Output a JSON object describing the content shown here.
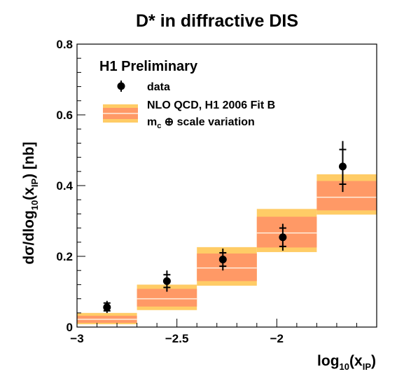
{
  "chart_data": {
    "type": "histogram-with-points",
    "title": "D* in diffractive DIS",
    "xlabel": {
      "main": "log",
      "sub1": "10",
      "mid": "(x",
      "sub2": "IP",
      "end": ")"
    },
    "ylabel": {
      "main": "dσ/dlog",
      "sub1": "10",
      "mid": "(x",
      "sub2": "IP",
      "end": ") [nb]"
    },
    "xlim": [
      -3.0,
      -1.5
    ],
    "ylim": [
      0.0,
      0.8
    ],
    "xticks": [
      -3.0,
      -2.5,
      -2.0
    ],
    "xtick_labels": [
      "−3",
      "−2.5",
      "−2"
    ],
    "yticks": [
      0.0,
      0.2,
      0.4,
      0.6,
      0.8
    ],
    "ytick_labels": [
      "0",
      "0.2",
      "0.4",
      "0.6",
      "0.8"
    ],
    "legend": {
      "header": "H1 Preliminary",
      "data_label": "data",
      "band_label": "NLO QCD, H1 2006 Fit B",
      "band_var": {
        "m": "m",
        "sub": "c",
        "rest": " ⊕ scale variation"
      }
    },
    "bins": [
      {
        "lo": -3.0,
        "hi": -2.7,
        "center": 0.022,
        "inner": [
          0.012,
          0.032
        ],
        "outer": [
          0.008,
          0.04
        ]
      },
      {
        "lo": -2.7,
        "hi": -2.4,
        "center": 0.08,
        "inner": [
          0.058,
          0.108
        ],
        "outer": [
          0.048,
          0.12
        ]
      },
      {
        "lo": -2.4,
        "hi": -2.1,
        "center": 0.167,
        "inner": [
          0.13,
          0.208
        ],
        "outer": [
          0.117,
          0.226
        ]
      },
      {
        "lo": -2.1,
        "hi": -1.8,
        "center": 0.266,
        "inner": [
          0.225,
          0.312
        ],
        "outer": [
          0.212,
          0.334
        ]
      },
      {
        "lo": -1.8,
        "hi": -1.5,
        "center": 0.367,
        "inner": [
          0.33,
          0.413
        ],
        "outer": [
          0.318,
          0.432
        ]
      }
    ],
    "points": [
      {
        "x": -2.85,
        "y": 0.056,
        "stat": [
          0.046,
          0.068
        ],
        "tot": [
          0.04,
          0.074
        ]
      },
      {
        "x": -2.55,
        "y": 0.13,
        "stat": [
          0.112,
          0.148
        ],
        "tot": [
          0.1,
          0.16
        ]
      },
      {
        "x": -2.27,
        "y": 0.191,
        "stat": [
          0.172,
          0.21
        ],
        "tot": [
          0.16,
          0.222
        ]
      },
      {
        "x": -1.97,
        "y": 0.254,
        "stat": [
          0.228,
          0.28
        ],
        "tot": [
          0.216,
          0.292
        ]
      },
      {
        "x": -1.67,
        "y": 0.454,
        "stat": [
          0.404,
          0.502
        ],
        "tot": [
          0.382,
          0.526
        ]
      }
    ],
    "colors": {
      "band_outer": "#ffcc66",
      "band_inner": "#ff9966",
      "band_center": "#ffeedd",
      "data": "#000000"
    }
  }
}
